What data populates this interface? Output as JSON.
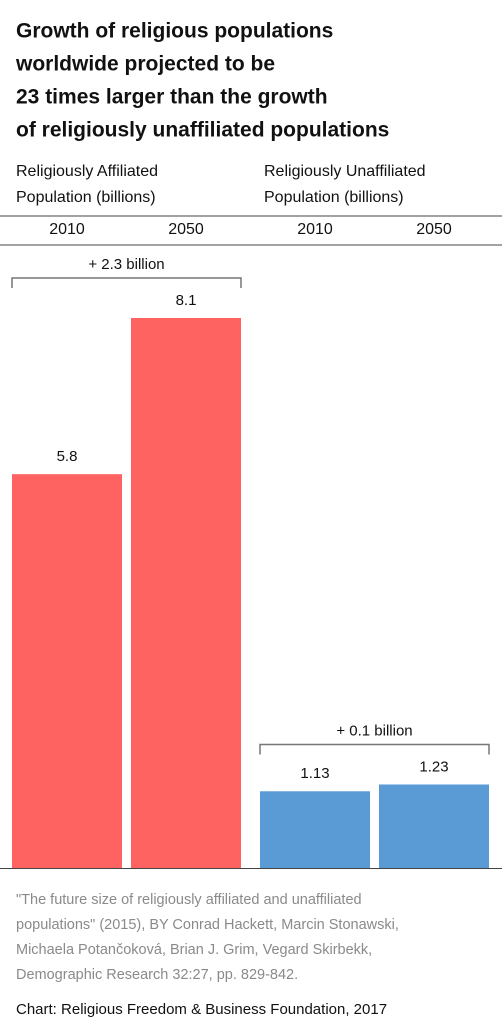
{
  "chart_data": {
    "type": "bar",
    "title": [
      "Growth of religious populations",
      "worldwide projected to be",
      "23 times larger than the growth",
      "of religiously unaffiliated populations"
    ],
    "groups": [
      {
        "label": [
          "Religiously Affiliated",
          "Population (billions)"
        ],
        "change": "+ 2.3 billion"
      },
      {
        "label": [
          "Religiously Unaffiliated",
          "Population (billions)"
        ],
        "change": "+ 0.1 billion"
      }
    ],
    "categories": [
      "2010",
      "2050",
      "2010",
      "2050"
    ],
    "values": [
      5.8,
      8.1,
      1.13,
      1.23
    ],
    "colors": [
      "#ff6361",
      "#ff6361",
      "#5b9bd5",
      "#5b9bd5"
    ],
    "source": [
      "\"The future size of religiously affiliated and unaffiliated",
      "populations\" (2015), BY Conrad Hackett, Marcin Stonawski,",
      "Michaela Potančoková, Brian J. Grim, Vegard Skirbekk,",
      "Demographic Research 32:27, pp. 829-842."
    ],
    "credit": "Chart: Religious Freedom & Business Foundation, 2017"
  }
}
